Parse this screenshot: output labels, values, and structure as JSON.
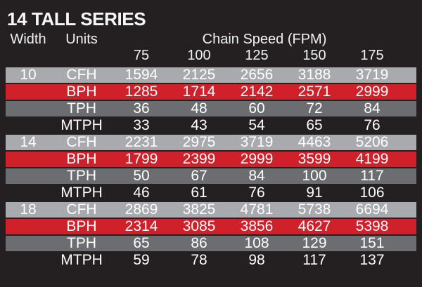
{
  "title": "14 TALL SERIES",
  "header": {
    "width_label": "Width",
    "units_label": "Units",
    "speed_group_label": "Chain Speed (FPM)",
    "speeds": [
      "75",
      "100",
      "125",
      "150",
      "175"
    ]
  },
  "table": {
    "groups": [
      {
        "width": "10",
        "rows": [
          {
            "unit": "CFH",
            "values": [
              "1594",
              "2125",
              "2656",
              "3188",
              "3719"
            ]
          },
          {
            "unit": "BPH",
            "values": [
              "1285",
              "1714",
              "2142",
              "2571",
              "2999"
            ]
          },
          {
            "unit": "TPH",
            "values": [
              "36",
              "48",
              "60",
              "72",
              "84"
            ]
          },
          {
            "unit": "MTPH",
            "values": [
              "33",
              "43",
              "54",
              "65",
              "76"
            ]
          }
        ]
      },
      {
        "width": "14",
        "rows": [
          {
            "unit": "CFH",
            "values": [
              "2231",
              "2975",
              "3719",
              "4463",
              "5206"
            ]
          },
          {
            "unit": "BPH",
            "values": [
              "1799",
              "2399",
              "2999",
              "3599",
              "4199"
            ]
          },
          {
            "unit": "TPH",
            "values": [
              "50",
              "67",
              "84",
              "100",
              "117"
            ]
          },
          {
            "unit": "MTPH",
            "values": [
              "46",
              "61",
              "76",
              "91",
              "106"
            ]
          }
        ]
      },
      {
        "width": "18",
        "rows": [
          {
            "unit": "CFH",
            "values": [
              "2869",
              "3825",
              "4781",
              "5738",
              "6694"
            ]
          },
          {
            "unit": "BPH",
            "values": [
              "2314",
              "3085",
              "3856",
              "4627",
              "5398"
            ]
          },
          {
            "unit": "TPH",
            "values": [
              "65",
              "86",
              "108",
              "129",
              "151"
            ]
          },
          {
            "unit": "MTPH",
            "values": [
              "59",
              "78",
              "98",
              "117",
              "137"
            ]
          }
        ]
      }
    ]
  },
  "colors": {
    "background": "#241f21",
    "row_cfh": "#a8aaad",
    "row_bph": "#d0202a",
    "row_tph": "#6c6d70",
    "text": "#ffffff"
  },
  "chart_data": {
    "type": "table",
    "title": "14 TALL SERIES",
    "column_group_label": "Chain Speed (FPM)",
    "columns": [
      "Width",
      "Units",
      75,
      100,
      125,
      150,
      175
    ],
    "rows": [
      [
        10,
        "CFH",
        1594,
        2125,
        2656,
        3188,
        3719
      ],
      [
        10,
        "BPH",
        1285,
        1714,
        2142,
        2571,
        2999
      ],
      [
        10,
        "TPH",
        36,
        48,
        60,
        72,
        84
      ],
      [
        10,
        "MTPH",
        33,
        43,
        54,
        65,
        76
      ],
      [
        14,
        "CFH",
        2231,
        2975,
        3719,
        4463,
        5206
      ],
      [
        14,
        "BPH",
        1799,
        2399,
        2999,
        3599,
        4199
      ],
      [
        14,
        "TPH",
        50,
        67,
        84,
        100,
        117
      ],
      [
        14,
        "MTPH",
        46,
        61,
        76,
        91,
        106
      ],
      [
        18,
        "CFH",
        2869,
        3825,
        4781,
        5738,
        6694
      ],
      [
        18,
        "BPH",
        2314,
        3085,
        3856,
        4627,
        5398
      ],
      [
        18,
        "TPH",
        65,
        86,
        108,
        129,
        151
      ],
      [
        18,
        "MTPH",
        59,
        78,
        98,
        117,
        137
      ]
    ],
    "row_colors": {
      "CFH": "#a8aaad",
      "BPH": "#d0202a",
      "TPH": "#6c6d70",
      "MTPH": "#241f21"
    }
  }
}
